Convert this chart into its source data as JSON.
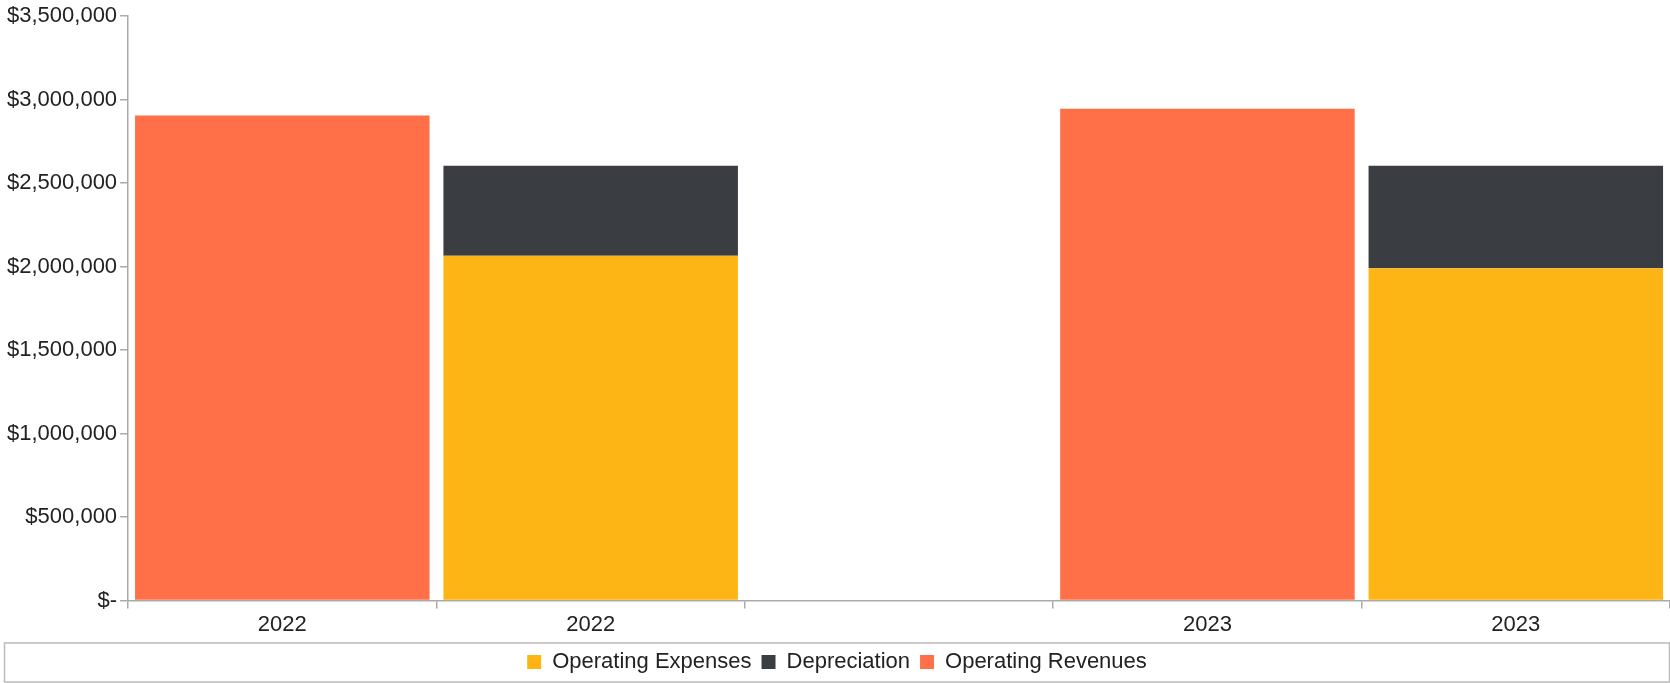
{
  "chart_data": {
    "type": "bar",
    "stacked": true,
    "categories": [
      "2022",
      "2022",
      null,
      "2023",
      "2023"
    ],
    "series": [
      {
        "name": "Operating Expenses",
        "color": "#fdb515",
        "values": [
          null,
          2065000,
          null,
          null,
          1990000
        ]
      },
      {
        "name": "Depreciation",
        "color": "#3a3e42",
        "values": [
          null,
          540000,
          null,
          null,
          615000
        ]
      },
      {
        "name": "Operating Revenues",
        "color": "#ff7049",
        "values": [
          2905000,
          null,
          null,
          2945000,
          null
        ]
      }
    ],
    "ylim": [
      0,
      3500000
    ],
    "yticks": [
      {
        "value": 0,
        "label": "$-"
      },
      {
        "value": 500000,
        "label": "$500,000"
      },
      {
        "value": 1000000,
        "label": "$1,000,000"
      },
      {
        "value": 1500000,
        "label": "$1,500,000"
      },
      {
        "value": 2000000,
        "label": "$2,000,000"
      },
      {
        "value": 2500000,
        "label": "$2,500,000"
      },
      {
        "value": 3000000,
        "label": "$3,000,000"
      },
      {
        "value": 3500000,
        "label": "$3,500,000"
      }
    ],
    "grid": false,
    "legend": "bottom"
  }
}
